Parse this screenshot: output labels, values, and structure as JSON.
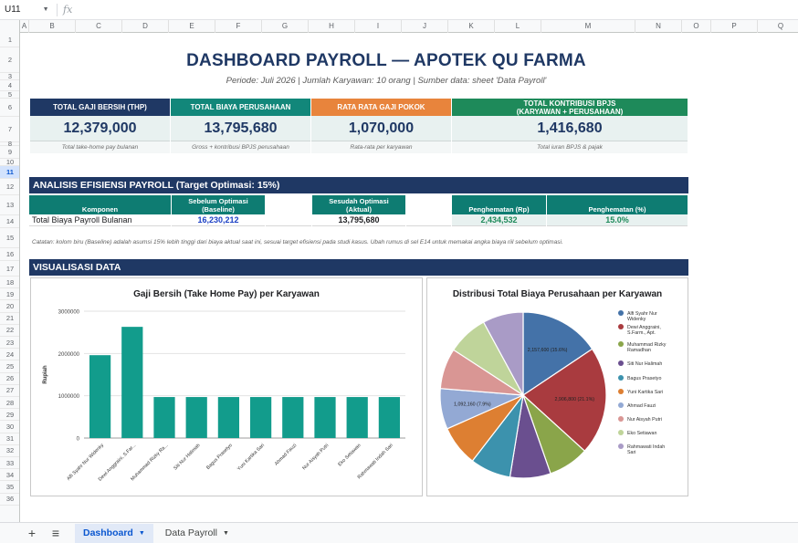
{
  "formula_bar": {
    "cell_ref": "U11",
    "fx": "fx",
    "value": ""
  },
  "columns": [
    "A",
    "B",
    "C",
    "D",
    "E",
    "F",
    "G",
    "H",
    "I",
    "J",
    "K",
    "L",
    "M",
    "N",
    "O",
    "P",
    "Q",
    "R"
  ],
  "rows": [
    "1",
    "2",
    "3",
    "4",
    "5",
    "6",
    "7",
    "8",
    "9",
    "10",
    "11",
    "12",
    "13",
    "14",
    "15",
    "16",
    "17",
    "18",
    "19",
    "20",
    "21",
    "22",
    "23",
    "24",
    "25",
    "26",
    "27",
    "28",
    "29",
    "30",
    "31",
    "32",
    "33",
    "34",
    "35",
    "36"
  ],
  "selected_row": "11",
  "header": {
    "title": "DASHBOARD PAYROLL — APOTEK QU FARMA",
    "subtitle": "Periode: Juli 2026  |  Jumlah Karyawan: 10 orang  |  Sumber data: sheet 'Data Payroll'"
  },
  "kpis": [
    {
      "label": "TOTAL GAJI BERSIH (THP)",
      "value": "12,379,000",
      "note": "Total take-home pay bulanan",
      "color": "#1f3864"
    },
    {
      "label": "TOTAL BIAYA PERUSAHAAN",
      "value": "13,795,680",
      "note": "Gross + kontribusi BPJS perusahaan",
      "color": "#12877a"
    },
    {
      "label": "RATA RATA GAJI POKOK",
      "value": "1,070,000",
      "note": "Rata-rata per karyawan",
      "color": "#e8843c"
    },
    {
      "label": "TOTAL KONTRIBUSI BPJS\n(KARYAWAN + PERUSAHAAN)",
      "value": "1,416,680",
      "note": "Total iuran BPJS & pajak",
      "color": "#1e8a5a"
    }
  ],
  "efficiency": {
    "section_title": "ANALISIS EFISIENSI PAYROLL  (Target Optimasi: 15%)",
    "headers": [
      "Komponen",
      "Sebelum Optimasi\n(Baseline)",
      "Sesudah Optimasi\n(Aktual)",
      "Penghematan (Rp)",
      "Penghematan (%)"
    ],
    "row": {
      "komponen": "Total Biaya Payroll Bulanan",
      "baseline": "16,230,212",
      "aktual": "13,795,680",
      "hemat_rp": "2,434,532",
      "hemat_pct": "15.0%"
    },
    "note": "Catatan: kolom biru (Baseline) adalah asumsi 15% lebih tinggi dari biaya aktual saat ini, sesuai target efisiensi pada studi kasus. Ubah rumus di sel E14 untuk memakai angka biaya riil sebelum optimasi."
  },
  "visual_section_title": "VISUALISASI DATA",
  "colors": {
    "navy": "#1f3864",
    "teal": "#12877a",
    "orange": "#e8843c",
    "green": "#1e8a5a",
    "bar": "#129c8c"
  },
  "chart_data": [
    {
      "type": "bar",
      "title": "Gaji Bersih (Take Home Pay) per Karyawan",
      "ylabel": "Rupiah",
      "xlabel": "",
      "ylim": [
        0,
        3000000
      ],
      "yticks": [
        "0",
        "1000000",
        "2000000",
        "3000000"
      ],
      "categories": [
        "Alfi Syahr Nur Widenky",
        "Dewi Anggraini, S.Far...",
        "Muhammad Rizky Ra...",
        "Siti Nur Halimah",
        "Bagus Prasetyo",
        "Yuni Kartika Sari",
        "Ahmad Fauzi",
        "Nur Aisyah Putri",
        "Eko Setiawan",
        "Rahmawati Indah Sari"
      ],
      "values": [
        1960000,
        2630000,
        970000,
        970000,
        970000,
        970000,
        970000,
        970000,
        970000,
        970000
      ],
      "grid": true,
      "legend": "none"
    },
    {
      "type": "pie",
      "title": "Distribusi Total Biaya Perusahaan per Karyawan",
      "labels": [
        "Alfi Syahr Nur Widenky",
        "Dewi Anggraini, S.Farm., Apt.",
        "Muhammad Rizky Ramadhan",
        "Siti Nur Halimah",
        "Bagus Prasetyo",
        "Yuni Kartika Sari",
        "Ahmad Fauzi",
        "Nur Aisyah Putri",
        "Eko Setiawan",
        "Rahmawati Indah Sari"
      ],
      "values": [
        15.6,
        21.1,
        7.9,
        7.9,
        7.9,
        7.9,
        7.9,
        7.9,
        7.9,
        7.9
      ],
      "slice_labels": [
        "2,157,600 (15.6%)",
        "2,906,800 (21.1%)",
        "",
        "",
        "",
        "",
        "1,092,160 (7.9%)",
        "",
        "",
        ""
      ],
      "colors": [
        "#4472a8",
        "#a93b3f",
        "#8aa54a",
        "#6a4f8f",
        "#3c92ad",
        "#dd7f32",
        "#93a9d4",
        "#d99694",
        "#bfd49a",
        "#a99bc6"
      ],
      "legend": "right"
    }
  ],
  "tabs": {
    "add": "+",
    "menu": "≡",
    "sheets": [
      "Dashboard",
      "Data Payroll"
    ],
    "active": "Dashboard"
  }
}
